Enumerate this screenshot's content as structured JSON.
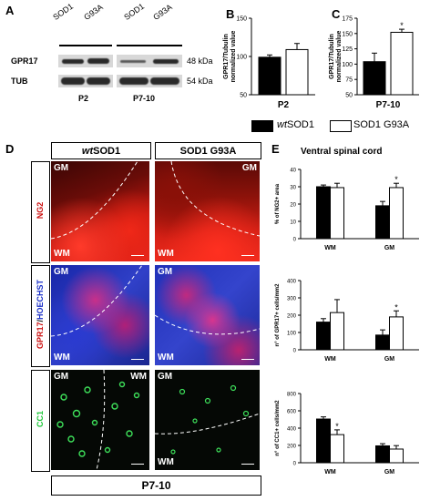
{
  "panelA": {
    "letter": "A",
    "col1": [
      "SOD1",
      "G93A"
    ],
    "col2": [
      "SOD1",
      "G93A"
    ],
    "row1": "GPR17",
    "row2": "TUB",
    "kda1": "48 kDa",
    "kda2": "54 kDa",
    "group1": "P2",
    "group2": "P7-10"
  },
  "panelD": {
    "letter": "D",
    "header_wt_prefix": "wt",
    "header_wt": "SOD1",
    "header_g93a": "SOD1 G93A",
    "row_labels": {
      "ng2": "NG2",
      "gpr17": "GPR17",
      "hoechst": "HOECHST",
      "cc1": "CC1"
    },
    "gm": "GM",
    "wm": "WM",
    "footer": "P7-10"
  },
  "panelE": {
    "letter": "E",
    "title": "Ventral spinal cord"
  },
  "legend": {
    "wt_prefix": "wt",
    "wt": "SOD1",
    "g93a": "SOD1 G93A",
    "wt_color": "#000000",
    "g93a_color": "#ffffff"
  },
  "chart_data": [
    {
      "id": "B",
      "type": "bar",
      "categories": [
        "P2"
      ],
      "series": [
        {
          "name": "wtSOD1",
          "values": [
            99
          ]
        },
        {
          "name": "SOD1 G93A",
          "values": [
            109
          ]
        }
      ],
      "errors": [
        [
          3
        ],
        [
          8
        ]
      ],
      "ylabel": "GPR17/Tubulin normalized value",
      "ylim": [
        50,
        150
      ],
      "yticks": [
        50,
        100,
        150
      ],
      "xlabel": "P2",
      "stars": [
        false,
        false
      ]
    },
    {
      "id": "C",
      "type": "bar",
      "categories": [
        "P7-10"
      ],
      "series": [
        {
          "name": "wtSOD1",
          "values": [
            104
          ]
        },
        {
          "name": "SOD1 G93A",
          "values": [
            152
          ]
        }
      ],
      "errors": [
        [
          14
        ],
        [
          5
        ]
      ],
      "ylabel": "GPR17/Tubulin normalized value",
      "ylim": [
        50,
        175
      ],
      "yticks": [
        50,
        75,
        100,
        125,
        150,
        175
      ],
      "xlabel": "P7-10",
      "stars": [
        false,
        true
      ]
    },
    {
      "id": "E1",
      "type": "bar",
      "categories": [
        "WM",
        "GM"
      ],
      "series": [
        {
          "name": "wtSOD1",
          "values": [
            30,
            19
          ]
        },
        {
          "name": "SOD1 G93A",
          "values": [
            29.5,
            29.5
          ]
        }
      ],
      "errors": [
        [
          1,
          2.5
        ],
        [
          2.5,
          2.5
        ]
      ],
      "ylabel": "% of NG2+ area",
      "ylim": [
        0,
        40
      ],
      "yticks": [
        0,
        10,
        20,
        30,
        40
      ],
      "stars": [
        false,
        false,
        false,
        true
      ]
    },
    {
      "id": "E2",
      "type": "bar",
      "categories": [
        "WM",
        "GM"
      ],
      "series": [
        {
          "name": "wtSOD1",
          "values": [
            160,
            85
          ]
        },
        {
          "name": "SOD1 G93A",
          "values": [
            215,
            190
          ]
        }
      ],
      "errors": [
        [
          20,
          30
        ],
        [
          75,
          35
        ]
      ],
      "ylabel": "n° of GPR17+ cells/mm2",
      "ylim": [
        0,
        400
      ],
      "yticks": [
        0,
        100,
        200,
        300,
        400
      ],
      "stars": [
        false,
        false,
        false,
        true
      ]
    },
    {
      "id": "E3",
      "type": "bar",
      "categories": [
        "WM",
        "GM"
      ],
      "series": [
        {
          "name": "wtSOD1",
          "values": [
            505,
            195
          ]
        },
        {
          "name": "SOD1 G93A",
          "values": [
            325,
            158
          ]
        }
      ],
      "errors": [
        [
          25,
          25
        ],
        [
          55,
          40
        ]
      ],
      "ylabel": "n° of CC1+ cells/mm2",
      "ylim": [
        0,
        800
      ],
      "yticks": [
        0,
        200,
        400,
        600,
        800
      ],
      "stars": [
        false,
        true,
        false,
        false
      ]
    }
  ]
}
